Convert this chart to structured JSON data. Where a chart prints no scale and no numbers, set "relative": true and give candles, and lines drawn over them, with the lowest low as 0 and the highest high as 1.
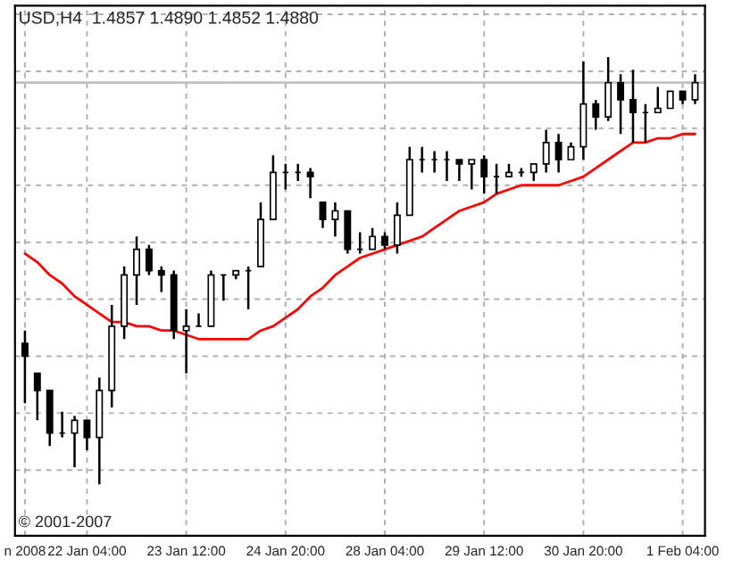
{
  "chart_data": {
    "type": "candlestick",
    "title": "USD,H4  1.4857 1.4890 1.4852 1.4880",
    "relative": true,
    "categories": [
      "n 2008",
      null,
      null,
      null,
      null,
      "22 Jan 04:00",
      null,
      null,
      null,
      null,
      null,
      null,
      null,
      "23 Jan 12:00",
      null,
      null,
      null,
      null,
      null,
      null,
      null,
      "24 Jan 20:00",
      null,
      null,
      null,
      null,
      null,
      null,
      null,
      "28 Jan 04:00",
      null,
      null,
      null,
      null,
      null,
      null,
      null,
      "29 Jan 12:00",
      null,
      null,
      null,
      null,
      null,
      null,
      null,
      "30 Jan 20:00",
      null,
      null,
      null,
      null,
      null,
      null,
      null,
      "1 Feb 04:00",
      null
    ],
    "ohlc": [
      [
        0.33,
        0.36,
        0.19,
        0.3
      ],
      [
        0.26,
        0.26,
        0.15,
        0.22
      ],
      [
        0.22,
        0.22,
        0.09,
        0.12
      ],
      [
        0.12,
        0.17,
        0.11,
        0.12
      ],
      [
        0.12,
        0.16,
        0.04,
        0.15
      ],
      [
        0.15,
        0.15,
        0.08,
        0.11
      ],
      [
        0.11,
        0.25,
        0.0,
        0.22
      ],
      [
        0.22,
        0.42,
        0.18,
        0.37
      ],
      [
        0.37,
        0.51,
        0.34,
        0.49
      ],
      [
        0.49,
        0.58,
        0.42,
        0.55
      ],
      [
        0.55,
        0.56,
        0.49,
        0.5
      ],
      [
        0.5,
        0.51,
        0.45,
        0.49
      ],
      [
        0.49,
        0.5,
        0.34,
        0.36
      ],
      [
        0.36,
        0.41,
        0.26,
        0.37
      ],
      [
        0.37,
        0.4,
        0.37,
        0.37
      ],
      [
        0.37,
        0.5,
        0.37,
        0.49
      ],
      [
        0.49,
        0.49,
        0.43,
        0.49
      ],
      [
        0.49,
        0.5,
        0.48,
        0.5
      ],
      [
        0.5,
        0.51,
        0.41,
        0.5
      ],
      [
        0.51,
        0.66,
        0.51,
        0.62
      ],
      [
        0.62,
        0.77,
        0.62,
        0.73
      ],
      [
        0.73,
        0.75,
        0.69,
        0.73
      ],
      [
        0.73,
        0.75,
        0.71,
        0.73
      ],
      [
        0.73,
        0.74,
        0.67,
        0.72
      ],
      [
        0.66,
        0.66,
        0.6,
        0.62
      ],
      [
        0.62,
        0.66,
        0.58,
        0.64
      ],
      [
        0.64,
        0.64,
        0.54,
        0.55
      ],
      [
        0.55,
        0.59,
        0.54,
        0.55
      ],
      [
        0.55,
        0.6,
        0.55,
        0.58
      ],
      [
        0.58,
        0.59,
        0.55,
        0.56
      ],
      [
        0.56,
        0.66,
        0.54,
        0.63
      ],
      [
        0.63,
        0.79,
        0.63,
        0.76
      ],
      [
        0.76,
        0.79,
        0.73,
        0.76
      ],
      [
        0.76,
        0.78,
        0.73,
        0.76
      ],
      [
        0.76,
        0.78,
        0.71,
        0.76
      ],
      [
        0.76,
        0.76,
        0.71,
        0.75
      ],
      [
        0.75,
        0.76,
        0.69,
        0.76
      ],
      [
        0.76,
        0.77,
        0.68,
        0.72
      ],
      [
        0.72,
        0.75,
        0.68,
        0.72
      ],
      [
        0.72,
        0.75,
        0.72,
        0.73
      ],
      [
        0.73,
        0.74,
        0.72,
        0.73
      ],
      [
        0.73,
        0.75,
        0.71,
        0.75
      ],
      [
        0.75,
        0.83,
        0.73,
        0.8
      ],
      [
        0.8,
        0.82,
        0.73,
        0.76
      ],
      [
        0.76,
        0.8,
        0.76,
        0.79
      ],
      [
        0.79,
        0.99,
        0.76,
        0.89
      ],
      [
        0.89,
        0.9,
        0.83,
        0.86
      ],
      [
        0.86,
        1.0,
        0.85,
        0.94
      ],
      [
        0.94,
        0.96,
        0.82,
        0.9
      ],
      [
        0.9,
        0.97,
        0.8,
        0.87
      ],
      [
        0.87,
        0.89,
        0.8,
        0.87
      ],
      [
        0.87,
        0.93,
        0.87,
        0.88
      ],
      [
        0.88,
        0.92,
        0.88,
        0.92
      ],
      [
        0.92,
        0.92,
        0.89,
        0.9
      ],
      [
        0.9,
        0.96,
        0.89,
        0.94
      ]
    ],
    "color": "#000000",
    "series": [
      {
        "type": "line",
        "color": "#ff0000",
        "values": [
          0.54,
          0.52,
          0.49,
          0.47,
          0.44,
          0.42,
          0.4,
          0.38,
          0.38,
          0.37,
          0.37,
          0.36,
          0.36,
          0.35,
          0.34,
          0.34,
          0.34,
          0.34,
          0.34,
          0.36,
          0.37,
          0.39,
          0.41,
          0.44,
          0.46,
          0.49,
          0.51,
          0.53,
          0.54,
          0.55,
          0.56,
          0.57,
          0.58,
          0.6,
          0.62,
          0.64,
          0.65,
          0.66,
          0.68,
          0.69,
          0.7,
          0.7,
          0.7,
          0.7,
          0.71,
          0.72,
          0.74,
          0.76,
          0.78,
          0.8,
          0.8,
          0.81,
          0.81,
          0.82,
          0.82
        ]
      }
    ],
    "ref_lines": [
      {
        "axis": "y",
        "value": 0.94,
        "color": "#c0c0c0"
      }
    ],
    "annotations": [
      "© 2001-2007"
    ],
    "grid": true
  }
}
